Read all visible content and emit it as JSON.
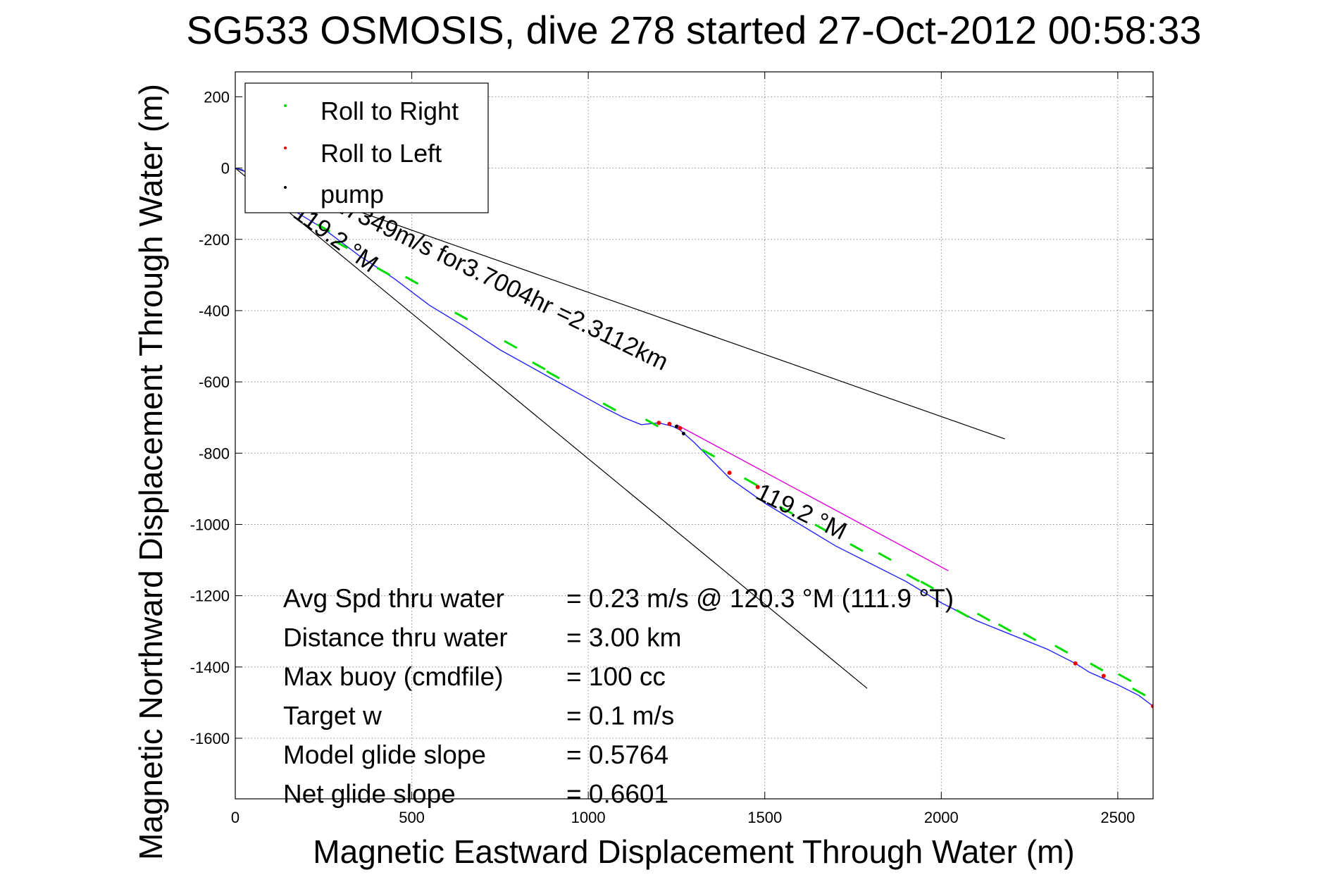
{
  "chart_data": {
    "type": "line",
    "title": "SG533 OSMOSIS, dive 278 started 27-Oct-2012 00:58:33",
    "xlabel": "Magnetic Eastward Displacement Through Water (m)",
    "ylabel": "Magnetic Northward Displacement Through Water (m)",
    "xlim": [
      0,
      2600
    ],
    "ylim": [
      -1770,
      270
    ],
    "xticks": [
      0,
      500,
      1000,
      1500,
      2000,
      2500
    ],
    "yticks": [
      200,
      0,
      -200,
      -400,
      -600,
      -800,
      -1000,
      -1200,
      -1400,
      -1600
    ],
    "grid": true,
    "legend": {
      "position": "top-left",
      "entries": [
        {
          "label": "Roll to Right",
          "color": "#00dd00"
        },
        {
          "label": "Roll to Left",
          "color": "#ee0000"
        },
        {
          "label": "pump",
          "color": "#000000"
        }
      ]
    },
    "series": [
      {
        "color": "#2222ff",
        "x": [
          0,
          20,
          50,
          100,
          150,
          250,
          350,
          450,
          550,
          650,
          750,
          850,
          950,
          1050,
          1100,
          1150,
          1200,
          1240,
          1260,
          1300,
          1350,
          1400,
          1500,
          1600,
          1700,
          1800,
          1900,
          2000,
          2100,
          2200,
          2300,
          2380,
          2420,
          2500,
          2560,
          2600
        ],
        "y": [
          0,
          -5,
          -25,
          -70,
          -110,
          -170,
          -245,
          -310,
          -385,
          -445,
          -510,
          -565,
          -620,
          -675,
          -700,
          -720,
          -715,
          -725,
          -735,
          -770,
          -820,
          -870,
          -940,
          -1000,
          -1060,
          -1110,
          -1160,
          -1220,
          -1270,
          -1310,
          -1350,
          -1390,
          -1415,
          -1450,
          -1480,
          -1510
        ]
      },
      {
        "color": "#dd00dd",
        "x": [
          1250,
          2020
        ],
        "y": [
          -720,
          -1130
        ]
      }
    ],
    "reference_lines": [
      {
        "color": "#000000",
        "x": [
          0,
          2180
        ],
        "y": [
          0,
          -760
        ]
      },
      {
        "color": "#000000",
        "x": [
          0,
          1790
        ],
        "y": [
          0,
          -1460
        ]
      }
    ],
    "markers": {
      "roll_right": {
        "color": "#00dd00",
        "x": [
          250,
          300,
          420,
          500,
          640,
          780,
          860,
          900,
          1060,
          1180,
          1340,
          1460,
          1560,
          1660,
          1760,
          1840,
          1920,
          1960,
          2060,
          2120,
          2180,
          2250,
          2340,
          2440,
          2520,
          2560
        ],
        "y": [
          -168,
          -215,
          -290,
          -315,
          -415,
          -495,
          -555,
          -580,
          -670,
          -715,
          -800,
          -880,
          -960,
          -1010,
          -1065,
          -1090,
          -1150,
          -1170,
          -1250,
          -1260,
          -1290,
          -1315,
          -1350,
          -1400,
          -1430,
          -1470
        ]
      },
      "roll_left": {
        "color": "#ee0000",
        "x": [
          1200,
          1230,
          1260,
          1400,
          1480,
          2380,
          2460,
          2600
        ],
        "y": [
          -715,
          -718,
          -730,
          -855,
          -895,
          -1390,
          -1425,
          -1510
        ]
      },
      "pump": {
        "color": "#000000",
        "x": [
          1250,
          1270
        ],
        "y": [
          -725,
          -745
        ]
      }
    },
    "annotations": [
      {
        "text": "119.2 °M",
        "x": 160,
        "y": -135,
        "angle": 36
      },
      {
        "text": "0.17349m/s for3.7004hr =2.3112km",
        "x": 220,
        "y": -90,
        "angle": 26
      },
      {
        "text": "119.2 °M",
        "x": 1470,
        "y": -925,
        "angle": 26
      }
    ],
    "stats": [
      {
        "label": "Avg Spd thru water",
        "value": "=  0.23 m/s @ 120.3 °M (111.9 °T)"
      },
      {
        "label": "Distance thru water",
        "value": "=  3.00 km"
      },
      {
        "label": "Max buoy (cmdfile)",
        "value": "= 100 cc"
      },
      {
        "label": "Target w",
        "value": "= 0.1 m/s"
      },
      {
        "label": "Model glide slope",
        "value": "= 0.5764"
      },
      {
        "label": "Net glide slope",
        "value": "= 0.6601"
      }
    ]
  }
}
